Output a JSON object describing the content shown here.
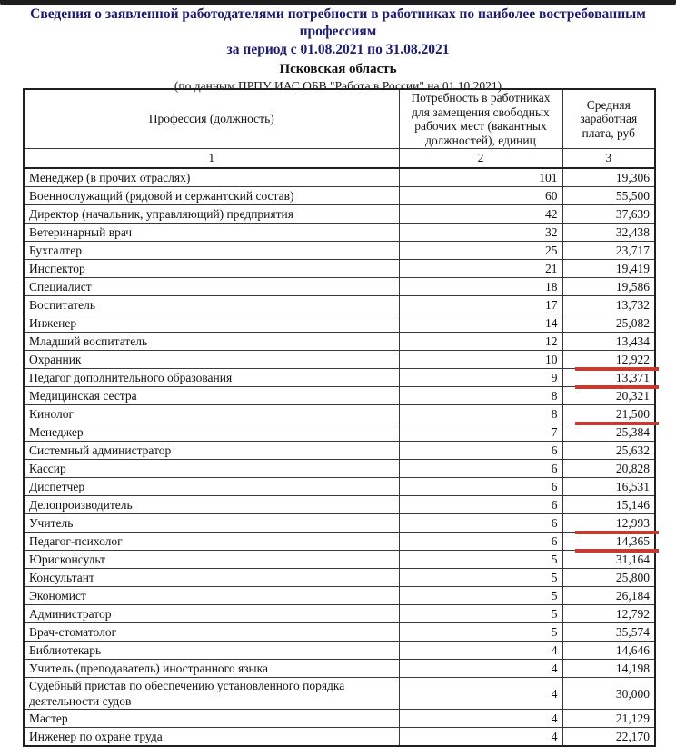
{
  "header": {
    "title": "Сведения о заявленной работодателями потребности в работниках по наиболее востребованным профессиям",
    "period": "за период с 01.08.2021 по 31.08.2021",
    "region": "Псковская область",
    "source": "(по данным ПРПУ ИАС ОБВ \"Работа в России\" на 01.10.2021)"
  },
  "table": {
    "columns": [
      "Профессия (должность)",
      "Потребность в работниках для замещения свободных рабочих мест (вакантных должностей), единиц",
      "Средняя заработная плата, руб"
    ],
    "col_numbers": [
      "1",
      "2",
      "3"
    ],
    "accent_underline_color": "#c53b32",
    "rows": [
      {
        "profession": "Менеджер (в прочих отраслях)",
        "demand": "101",
        "salary": "19,306",
        "underline": false
      },
      {
        "profession": "Военнослужащий (рядовой и сержантский состав)",
        "demand": "60",
        "salary": "55,500",
        "underline": false
      },
      {
        "profession": "Директор (начальник, управляющий) предприятия",
        "demand": "42",
        "salary": "37,639",
        "underline": false
      },
      {
        "profession": "Ветеринарный врач",
        "demand": "32",
        "salary": "32,438",
        "underline": false
      },
      {
        "profession": "Бухгалтер",
        "demand": "25",
        "salary": "23,717",
        "underline": false
      },
      {
        "profession": "Инспектор",
        "demand": "21",
        "salary": "19,419",
        "underline": false
      },
      {
        "profession": "Специалист",
        "demand": "18",
        "salary": "19,586",
        "underline": false
      },
      {
        "profession": "Воспитатель",
        "demand": "17",
        "salary": "13,732",
        "underline": false
      },
      {
        "profession": "Инженер",
        "demand": "14",
        "salary": "25,082",
        "underline": false
      },
      {
        "profession": "Младший воспитатель",
        "demand": "12",
        "salary": "13,434",
        "underline": false
      },
      {
        "profession": "Охранник",
        "demand": "10",
        "salary": "12,922",
        "underline": true
      },
      {
        "profession": "Педагог дополнительного образования",
        "demand": "9",
        "salary": "13,371",
        "underline": true
      },
      {
        "profession": "Медицинская сестра",
        "demand": "8",
        "salary": "20,321",
        "underline": false
      },
      {
        "profession": "Кинолог",
        "demand": "8",
        "salary": "21,500",
        "underline": true
      },
      {
        "profession": "Менеджер",
        "demand": "7",
        "salary": "25,384",
        "underline": false
      },
      {
        "profession": "Системный администратор",
        "demand": "6",
        "salary": "25,632",
        "underline": false
      },
      {
        "profession": "Кассир",
        "demand": "6",
        "salary": "20,828",
        "underline": false
      },
      {
        "profession": "Диспетчер",
        "demand": "6",
        "salary": "16,531",
        "underline": false
      },
      {
        "profession": "Делопроизводитель",
        "demand": "6",
        "salary": "15,146",
        "underline": false
      },
      {
        "profession": "Учитель",
        "demand": "6",
        "salary": "12,993",
        "underline": true
      },
      {
        "profession": "Педагог-психолог",
        "demand": "6",
        "salary": "14,365",
        "underline": true
      },
      {
        "profession": "Юрисконсульт",
        "demand": "5",
        "salary": "31,164",
        "underline": false
      },
      {
        "profession": "Консультант",
        "demand": "5",
        "salary": "25,800",
        "underline": false
      },
      {
        "profession": "Экономист",
        "demand": "5",
        "salary": "26,184",
        "underline": false
      },
      {
        "profession": "Администратор",
        "demand": "5",
        "salary": "12,792",
        "underline": false
      },
      {
        "profession": "Врач-стоматолог",
        "demand": "5",
        "salary": "35,574",
        "underline": false
      },
      {
        "profession": "Библиотекарь",
        "demand": "4",
        "salary": "14,646",
        "underline": false
      },
      {
        "profession": "Учитель (преподаватель) иностранного языка",
        "demand": "4",
        "salary": "14,198",
        "underline": false
      },
      {
        "profession": "Судебный пристав по обеспечению установленного порядка деятельности судов",
        "demand": "4",
        "salary": "30,000",
        "underline": false
      },
      {
        "profession": "Мастер",
        "demand": "4",
        "salary": "21,129",
        "underline": false
      },
      {
        "profession": "Инженер по охране труда",
        "demand": "4",
        "salary": "22,170",
        "underline": false
      }
    ]
  }
}
